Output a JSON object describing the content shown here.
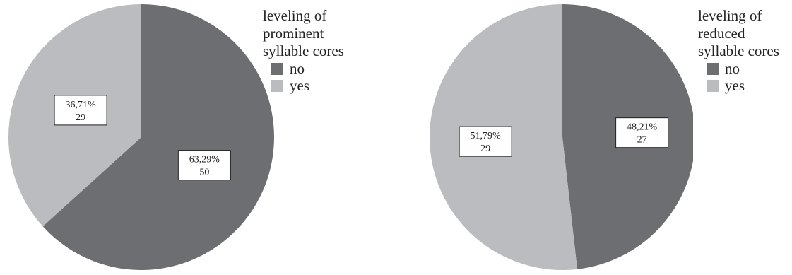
{
  "colors": {
    "no": "#6d6e71",
    "yes": "#bbbcbf"
  },
  "chart_data": [
    {
      "type": "pie",
      "title": "",
      "legend_title": "leveling of\nprominent\nsyllable cores",
      "legend_placement": "top-right",
      "start_angle_deg": 0,
      "direction": "clockwise",
      "slices": [
        {
          "label": "no",
          "value": 50,
          "percent": "63,29%",
          "color": "#6d6e71"
        },
        {
          "label": "yes",
          "value": 29,
          "percent": "36,71%",
          "color": "#bbbcbf"
        }
      ]
    },
    {
      "type": "pie",
      "title": "",
      "legend_title": "leveling of\nreduced\nsyllable cores",
      "legend_placement": "top-right",
      "start_angle_deg": 0,
      "direction": "clockwise",
      "slices": [
        {
          "label": "no",
          "value": 27,
          "percent": "48,21%",
          "color": "#6d6e71"
        },
        {
          "label": "yes",
          "value": 29,
          "percent": "51,79%",
          "color": "#bbbcbf"
        }
      ]
    }
  ]
}
